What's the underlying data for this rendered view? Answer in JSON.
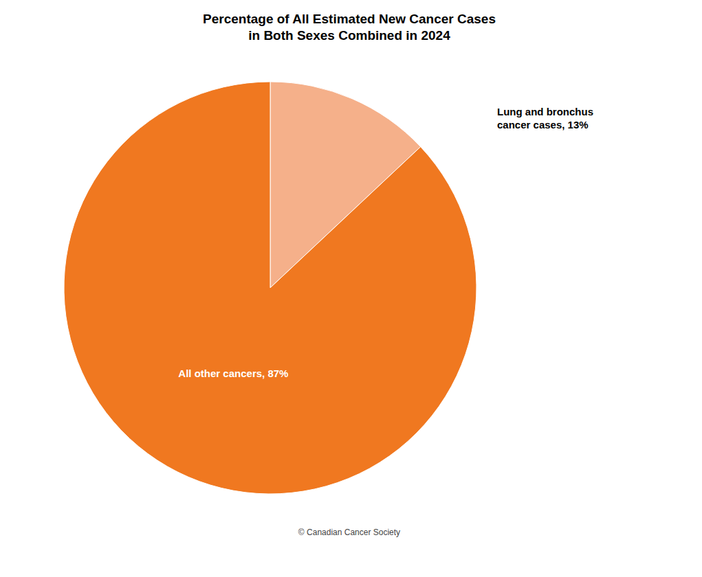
{
  "chart_data": {
    "type": "pie",
    "title": "Percentage of All Estimated New Cancer Cases\nin Both Sexes Combined in 2024",
    "categories": [
      "Lung and bronchus\ncancer cases, 13%",
      "All other cancers, 87%"
    ],
    "values": [
      13,
      87
    ],
    "colors": [
      "#F5B08A",
      "#F07820"
    ],
    "data_labels": true,
    "annotations": [
      "© Canadian Cancer Society"
    ]
  }
}
